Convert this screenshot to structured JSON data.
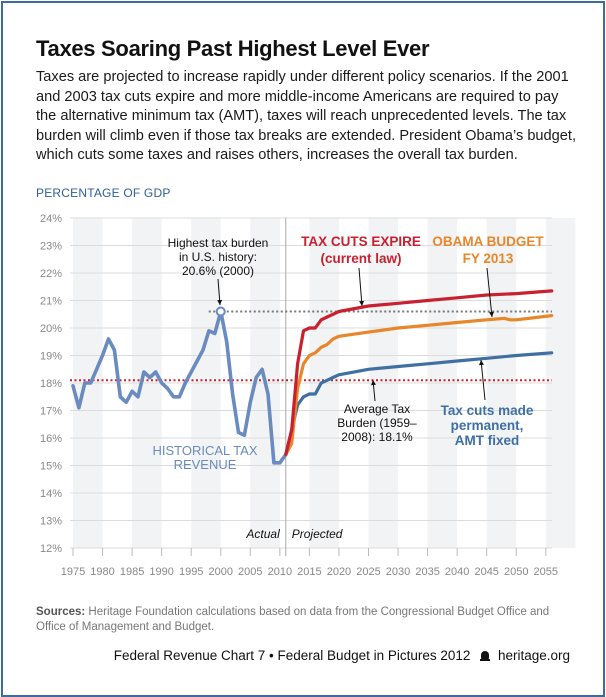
{
  "header": {
    "title": "Taxes Soaring Past Highest Level Ever",
    "description": "Taxes are projected to increase rapidly under different policy scenarios. If the 2001 and 2003 tax cuts expire and more middle-income Americans are required to pay the alternative minimum tax (AMT), taxes will reach unprecedented levels. The tax burden will climb even if those tax breaks are extended. President Obama’s budget, which cuts some taxes and raises others, increases the overall tax burden."
  },
  "footer": {
    "sources_label": "Sources:",
    "sources_text": " Heritage Foundation calculations based on data from the Congressional Budget Office and Office of Management and Budget.",
    "credit": "Federal Revenue Chart 7 • Federal Budget in Pictures 2012",
    "site": "heritage.org",
    "logo_icon": "liberty-bell-icon"
  },
  "colors": {
    "historical": "#6a8bbf",
    "tax_cuts_expire": "#c8202f",
    "obama_budget": "#e8862a",
    "tax_cuts_permanent": "#3f6fa3",
    "average_line": "#c8202f",
    "peak_line": "#777777",
    "label_blue": "#2f5f96"
  },
  "chart_data": {
    "type": "line",
    "title": "Taxes Soaring Past Highest Level Ever",
    "xlabel": "",
    "ylabel": "PERCENTAGE OF GDP",
    "xlim": [
      1975,
      2056
    ],
    "ylim": [
      12,
      24
    ],
    "grid": true,
    "x_ticks": [
      "1975",
      "1980",
      "1985",
      "1990",
      "1995",
      "2000",
      "2005",
      "2010",
      "2015",
      "2020",
      "2025",
      "2030",
      "2035",
      "2040",
      "2045",
      "2050",
      "2055"
    ],
    "y_ticks": [
      "12%",
      "13%",
      "14%",
      "15%",
      "16%",
      "17%",
      "18%",
      "19%",
      "20%",
      "21%",
      "22%",
      "23%",
      "24%"
    ],
    "divider_year": 2011,
    "divider_labels": {
      "left": "Actual",
      "right": "Projected"
    },
    "series": [
      {
        "name": "Historical Tax Revenue",
        "key": "historical",
        "x": [
          1975,
          1976,
          1977,
          1978,
          1979,
          1980,
          1981,
          1982,
          1983,
          1984,
          1985,
          1986,
          1987,
          1988,
          1989,
          1990,
          1991,
          1992,
          1993,
          1994,
          1995,
          1996,
          1997,
          1998,
          1999,
          2000,
          2001,
          2002,
          2003,
          2004,
          2005,
          2006,
          2007,
          2008,
          2009,
          2010,
          2011
        ],
        "values": [
          17.9,
          17.1,
          18.0,
          18.0,
          18.5,
          19.0,
          19.6,
          19.2,
          17.5,
          17.3,
          17.7,
          17.5,
          18.4,
          18.2,
          18.4,
          18.0,
          17.8,
          17.5,
          17.5,
          18.0,
          18.4,
          18.8,
          19.2,
          19.9,
          19.8,
          20.6,
          19.5,
          17.6,
          16.2,
          16.1,
          17.3,
          18.2,
          18.5,
          17.6,
          15.1,
          15.1,
          15.4
        ]
      },
      {
        "name": "Tax Cuts Expire (current law)",
        "key": "tax_cuts_expire",
        "x": [
          2011,
          2012,
          2013,
          2014,
          2015,
          2016,
          2017,
          2018,
          2019,
          2020,
          2025,
          2030,
          2035,
          2040,
          2045,
          2050,
          2056
        ],
        "values": [
          15.4,
          16.3,
          18.7,
          19.9,
          20.0,
          20.0,
          20.3,
          20.4,
          20.5,
          20.6,
          20.8,
          20.9,
          21.0,
          21.1,
          21.2,
          21.25,
          21.35
        ]
      },
      {
        "name": "Obama Budget FY 2013",
        "key": "obama_budget",
        "x": [
          2011,
          2012,
          2013,
          2014,
          2015,
          2016,
          2017,
          2018,
          2019,
          2020,
          2025,
          2030,
          2035,
          2040,
          2045,
          2048,
          2049,
          2050,
          2056
        ],
        "values": [
          15.4,
          15.8,
          17.8,
          18.7,
          19.0,
          19.1,
          19.3,
          19.4,
          19.6,
          19.7,
          19.85,
          20.0,
          20.1,
          20.2,
          20.3,
          20.35,
          20.3,
          20.3,
          20.45
        ]
      },
      {
        "name": "Tax cuts made permanent, AMT fixed",
        "key": "tax_cuts_permanent",
        "x": [
          2011,
          2012,
          2013,
          2014,
          2015,
          2016,
          2017,
          2018,
          2019,
          2020,
          2025,
          2030,
          2035,
          2040,
          2045,
          2050,
          2056
        ],
        "values": [
          15.4,
          16.3,
          17.2,
          17.5,
          17.6,
          17.6,
          18.0,
          18.1,
          18.2,
          18.3,
          18.5,
          18.6,
          18.7,
          18.8,
          18.9,
          19.0,
          19.1
        ]
      }
    ],
    "reference_lines": [
      {
        "name": "Average Tax Burden (1959–2008)",
        "value": 18.1,
        "style": "dotted",
        "key": "average_line"
      },
      {
        "name": "Highest tax burden",
        "value": 20.6,
        "from_year": 2000,
        "style": "dotted",
        "key": "peak_line"
      }
    ],
    "annotations": {
      "peak": [
        "Highest tax burden",
        "in U.S. history:",
        "20.6% (2000)"
      ],
      "historical": [
        "HISTORICAL TAX",
        "REVENUE"
      ],
      "expire": [
        "TAX CUTS EXPIRE",
        "(current law)"
      ],
      "obama": [
        "OBAMA BUDGET",
        "FY 2013"
      ],
      "average": [
        "Average Tax",
        "Burden (1959–",
        "2008): 18.1%"
      ],
      "permanent": [
        "Tax cuts made",
        "permanent,",
        "AMT fixed"
      ]
    }
  }
}
